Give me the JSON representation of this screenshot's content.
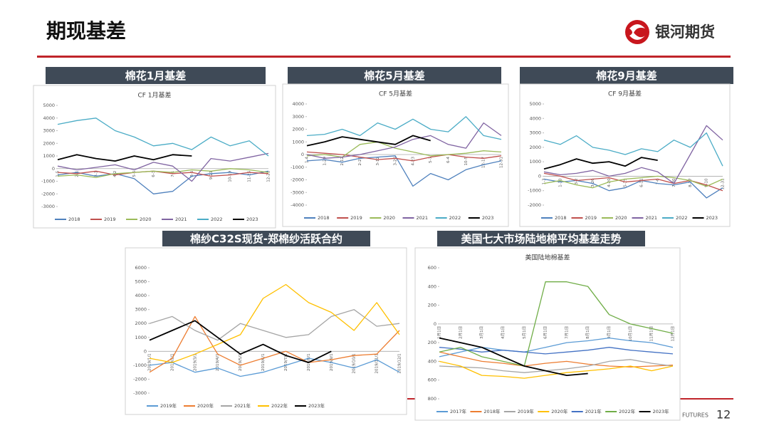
{
  "header": {
    "title": "期现基差",
    "logo": "银河期货"
  },
  "panels": [
    "棉花1月基差",
    "棉花5月基差",
    "棉花9月基差",
    "棉纱C32S现货-郑棉纱活跃合约",
    "美国七大市场陆地棉平均基差走势"
  ],
  "footer": {
    "brand": "FUTURES",
    "page": 12
  },
  "chart_data": [
    {
      "type": "line",
      "title": "CF 1月基差",
      "categories": [
        "1-5",
        "2-1",
        "3-1",
        "4-2",
        "5-6",
        "6-3",
        "7-1",
        "8-5",
        "9-21",
        "10-19",
        "11-25",
        "12-21"
      ],
      "ylim": [
        -3000,
        5000
      ],
      "yticks": [
        -3000,
        -2000,
        -1000,
        0,
        1000,
        2000,
        3000,
        4000,
        5000
      ],
      "series": [
        {
          "name": "2018",
          "color": "#4f81bd",
          "values": [
            -500,
            -300,
            -600,
            -400,
            -800,
            -2000,
            -1800,
            -600,
            -400,
            -300,
            -500,
            -200
          ]
        },
        {
          "name": "2019",
          "color": "#c0504d",
          "values": [
            -300,
            -400,
            -200,
            -500,
            -300,
            -200,
            -400,
            -300,
            -600,
            -500,
            -300,
            -400
          ]
        },
        {
          "name": "2020",
          "color": "#9bbb59",
          "values": [
            -600,
            -500,
            -700,
            -400,
            -300,
            -200,
            -300,
            -100,
            -200,
            0,
            -100,
            -300
          ]
        },
        {
          "name": "2021",
          "color": "#8064a2",
          "values": [
            200,
            -100,
            100,
            300,
            -100,
            500,
            200,
            -1000,
            800,
            600,
            900,
            1200
          ]
        },
        {
          "name": "2022",
          "color": "#4bacc6",
          "values": [
            3500,
            3800,
            4000,
            3000,
            2500,
            1800,
            2000,
            1500,
            2500,
            1800,
            2200,
            1000
          ]
        },
        {
          "name": "2023",
          "color": "#000000",
          "values": [
            700,
            1100,
            800,
            600,
            1000,
            700,
            1100,
            1000,
            null,
            null,
            null,
            null
          ]
        }
      ]
    },
    {
      "type": "line",
      "title": "CF 5月基差",
      "categories": [
        "1-4",
        "1-29",
        "2-12",
        "2-26",
        "3-12",
        "3-26",
        "4-23",
        "5-7",
        "6-4",
        "10-5",
        "12-17",
        "12-31"
      ],
      "ylim": [
        -4000,
        4000
      ],
      "yticks": [
        -4000,
        -3000,
        -2000,
        -1000,
        0,
        1000,
        2000,
        3000,
        4000
      ],
      "series": [
        {
          "name": "2018",
          "color": "#4f81bd",
          "values": [
            -500,
            -400,
            -600,
            -300,
            -200,
            -100,
            -2500,
            -1500,
            -2000,
            -1200,
            -800,
            -500
          ]
        },
        {
          "name": "2019",
          "color": "#c0504d",
          "values": [
            200,
            100,
            0,
            -200,
            -400,
            -300,
            -500,
            -200,
            0,
            -200,
            -300,
            -100
          ]
        },
        {
          "name": "2020",
          "color": "#9bbb59",
          "values": [
            -100,
            0,
            -200,
            800,
            1000,
            500,
            200,
            -100,
            0,
            100,
            300,
            200
          ]
        },
        {
          "name": "2021",
          "color": "#8064a2",
          "values": [
            0,
            -300,
            -200,
            0,
            300,
            600,
            1200,
            1500,
            800,
            500,
            2500,
            1500
          ]
        },
        {
          "name": "2022",
          "color": "#4bacc6",
          "values": [
            1500,
            1600,
            2000,
            1500,
            2500,
            2000,
            2800,
            2000,
            1800,
            3000,
            1500,
            1200
          ]
        },
        {
          "name": "2023",
          "color": "#000000",
          "values": [
            700,
            1000,
            1400,
            1200,
            1000,
            800,
            1500,
            1100,
            null,
            null,
            null,
            null
          ]
        }
      ]
    },
    {
      "type": "line",
      "title": "CF 9月基差",
      "categories": [
        "1-3",
        "1-30",
        "3-2",
        "3-26",
        "4-20",
        "5-19",
        "6-11",
        "7-6",
        "7-30",
        "8-27",
        "9-10",
        "12-31"
      ],
      "ylim": [
        -2000,
        5000
      ],
      "yticks": [
        -2000,
        -1000,
        0,
        1000,
        2000,
        3000,
        4000,
        5000
      ],
      "series": [
        {
          "name": "2018",
          "color": "#4f81bd",
          "values": [
            -200,
            -400,
            -300,
            -500,
            -1000,
            -800,
            -300,
            -500,
            -600,
            -400,
            -1500,
            -800
          ]
        },
        {
          "name": "2019",
          "color": "#c0504d",
          "values": [
            200,
            0,
            -300,
            -200,
            -100,
            -400,
            -300,
            -200,
            -500,
            -300,
            -600,
            -1000
          ]
        },
        {
          "name": "2020",
          "color": "#9bbb59",
          "values": [
            -500,
            -300,
            -600,
            -800,
            -400,
            -200,
            -100,
            0,
            -100,
            -300,
            -700,
            -200
          ]
        },
        {
          "name": "2021",
          "color": "#8064a2",
          "values": [
            300,
            100,
            200,
            400,
            0,
            200,
            600,
            300,
            -500,
            1500,
            3500,
            2500
          ]
        },
        {
          "name": "2022",
          "color": "#4bacc6",
          "values": [
            2500,
            2200,
            2800,
            2000,
            1800,
            1500,
            1900,
            1700,
            2500,
            2000,
            3000,
            700
          ]
        },
        {
          "name": "2023",
          "color": "#000000",
          "values": [
            500,
            800,
            1200,
            900,
            1000,
            700,
            1300,
            1100,
            null,
            null,
            null,
            null
          ]
        }
      ]
    },
    {
      "type": "line",
      "categories": [
        "2019/1/1",
        "2019/2/1",
        "2019/3/1",
        "2019/4/1",
        "2019/5/1",
        "2019/6/1",
        "2019/7/1",
        "2019/8/1",
        "2019/9/1",
        "2019/10/1",
        "2019/11/1",
        "2019/12/1"
      ],
      "ylim": [
        -3000,
        6000
      ],
      "yticks": [
        -3000,
        -2000,
        -1000,
        0,
        1000,
        2000,
        3000,
        4000,
        5000,
        6000
      ],
      "series": [
        {
          "name": "2019年",
          "color": "#5b9bd5",
          "values": [
            -1000,
            -800,
            -1500,
            -1200,
            -1800,
            -1500,
            -1000,
            -500,
            -800,
            -1200,
            -600,
            -1500
          ]
        },
        {
          "name": "2020年",
          "color": "#ed7d31",
          "values": [
            -1500,
            -500,
            2500,
            -200,
            -1000,
            -500,
            0,
            -800,
            -600,
            -300,
            -200,
            1500
          ]
        },
        {
          "name": "2021年",
          "color": "#a5a5a5",
          "values": [
            2000,
            2500,
            1500,
            800,
            2000,
            1500,
            1000,
            1200,
            2500,
            3000,
            1800,
            2000
          ]
        },
        {
          "name": "2022年",
          "color": "#ffc000",
          "values": [
            -500,
            -800,
            -200,
            500,
            1200,
            3800,
            4800,
            3500,
            2800,
            1500,
            3500,
            1200
          ]
        },
        {
          "name": "2023年",
          "color": "#000000",
          "values": [
            800,
            1500,
            2200,
            1000,
            -200,
            500,
            -300,
            -800,
            0,
            null,
            null,
            null
          ]
        }
      ]
    },
    {
      "type": "line",
      "title": "美国陆地棉基差",
      "categories": [
        "1月1日",
        "2月1日",
        "3月1日",
        "4月1日",
        "5月1日",
        "6月1日",
        "7月1日",
        "8月1日",
        "9月1日",
        "10月1日",
        "11月1日",
        "12月1日"
      ],
      "ylim": [
        -800,
        600
      ],
      "yticks": [
        {
          "value": -800,
          "label": "800"
        },
        {
          "value": -600,
          "label": "600"
        },
        {
          "value": -400,
          "label": "400"
        },
        {
          "value": -200,
          "label": "200"
        },
        0,
        200,
        400,
        600
      ],
      "series": [
        {
          "name": "2017年",
          "color": "#5b9bd5",
          "values": [
            -350,
            -300,
            -250,
            -280,
            -300,
            -250,
            -200,
            -180,
            -150,
            -180,
            -200,
            -250
          ]
        },
        {
          "name": "2018年",
          "color": "#ed7d31",
          "values": [
            -300,
            -350,
            -400,
            -420,
            -450,
            -420,
            -400,
            -430,
            -450,
            -460,
            -450,
            -440
          ]
        },
        {
          "name": "2019年",
          "color": "#a5a5a5",
          "values": [
            -450,
            -460,
            -470,
            -500,
            -520,
            -500,
            -480,
            -450,
            -400,
            -380,
            -420,
            -450
          ]
        },
        {
          "name": "2020年",
          "color": "#ffc000",
          "values": [
            -400,
            -450,
            -550,
            -560,
            -580,
            -550,
            -520,
            -500,
            -480,
            -450,
            -500,
            -450
          ]
        },
        {
          "name": "2021年",
          "color": "#4472c4",
          "values": [
            -250,
            -270,
            -300,
            -280,
            -300,
            -320,
            -300,
            -280,
            -250,
            -280,
            -300,
            -320
          ]
        },
        {
          "name": "2022年",
          "color": "#70ad47",
          "values": [
            -300,
            -250,
            -350,
            -400,
            -450,
            450,
            450,
            400,
            100,
            0,
            -50,
            -100
          ]
        },
        {
          "name": "2023年",
          "color": "#000000",
          "values": [
            -150,
            -200,
            -250,
            -350,
            -450,
            -500,
            -550,
            -530,
            null,
            null,
            null,
            null
          ]
        }
      ]
    }
  ]
}
